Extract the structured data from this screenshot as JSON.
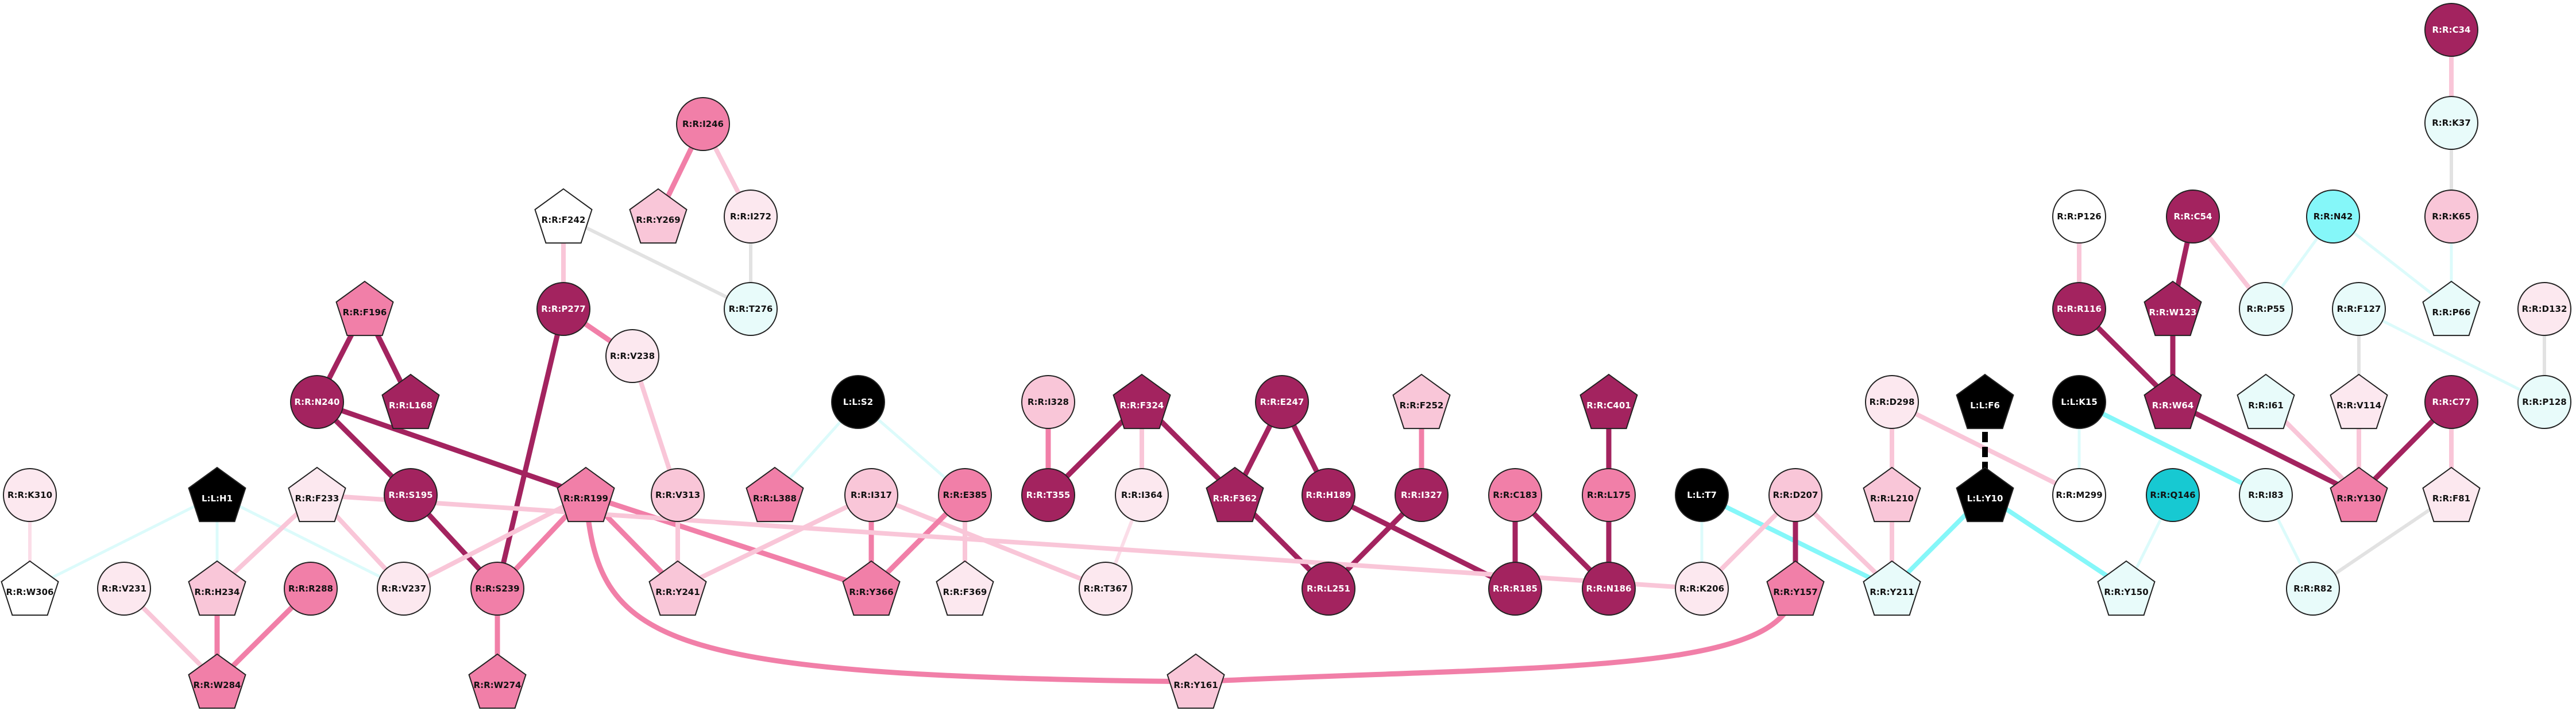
{
  "palette": {
    "white": "#ffffff",
    "blush": "#fce8ef",
    "pink": "#f9c6d8",
    "rose": "#f17fa8",
    "magenta": "#a3235f",
    "mint": "#e8fbfa",
    "cyan": "#85f7f9",
    "teal": "#17c9d2",
    "black": "#000000"
  },
  "edge_colors": {
    "dark": "#a3235f",
    "rose": "#f17fa8",
    "pink": "#f9c6d8",
    "grey": "#e2e2e2",
    "cyan": "#85f7f9",
    "faint_cyan": "#dcfbfb",
    "black": "#000000"
  },
  "nodes": [
    {
      "id": "R:R:C34",
      "shape": "circle",
      "fill": "magenta"
    },
    {
      "id": "R:R:K37",
      "shape": "circle",
      "fill": "mint"
    },
    {
      "id": "R:R:I246",
      "shape": "circle",
      "fill": "rose"
    },
    {
      "id": "R:R:Y269",
      "shape": "pentagon",
      "fill": "pink"
    },
    {
      "id": "R:R:I272",
      "shape": "circle",
      "fill": "blush"
    },
    {
      "id": "R:R:F242",
      "shape": "pentagon",
      "fill": "white"
    },
    {
      "id": "R:R:T276",
      "shape": "circle",
      "fill": "mint"
    },
    {
      "id": "R:R:P126",
      "shape": "circle",
      "fill": "white"
    },
    {
      "id": "R:R:C54",
      "shape": "circle",
      "fill": "magenta"
    },
    {
      "id": "R:R:N42",
      "shape": "circle",
      "fill": "cyan"
    },
    {
      "id": "R:R:K65",
      "shape": "circle",
      "fill": "pink"
    },
    {
      "id": "R:R:R116",
      "shape": "circle",
      "fill": "magenta"
    },
    {
      "id": "R:R:W123",
      "shape": "pentagon",
      "fill": "magenta"
    },
    {
      "id": "R:R:P55",
      "shape": "circle",
      "fill": "mint"
    },
    {
      "id": "R:R:F127",
      "shape": "circle",
      "fill": "mint"
    },
    {
      "id": "R:R:P66",
      "shape": "pentagon",
      "fill": "mint"
    },
    {
      "id": "R:R:D132",
      "shape": "circle",
      "fill": "blush"
    },
    {
      "id": "R:R:F196",
      "shape": "pentagon",
      "fill": "rose"
    },
    {
      "id": "R:R:P277",
      "shape": "circle",
      "fill": "magenta"
    },
    {
      "id": "R:R:V238",
      "shape": "circle",
      "fill": "blush"
    },
    {
      "id": "R:R:N240",
      "shape": "circle",
      "fill": "magenta"
    },
    {
      "id": "R:R:L168",
      "shape": "pentagon",
      "fill": "magenta"
    },
    {
      "id": "L:L:S2",
      "shape": "circle",
      "fill": "black"
    },
    {
      "id": "R:R:I328",
      "shape": "circle",
      "fill": "pink"
    },
    {
      "id": "R:R:F324",
      "shape": "pentagon",
      "fill": "magenta"
    },
    {
      "id": "R:R:E247",
      "shape": "circle",
      "fill": "magenta"
    },
    {
      "id": "R:R:F252",
      "shape": "pentagon",
      "fill": "pink"
    },
    {
      "id": "R:R:C401",
      "shape": "pentagon",
      "fill": "magenta"
    },
    {
      "id": "R:R:D298",
      "shape": "circle",
      "fill": "blush"
    },
    {
      "id": "L:L:F6",
      "shape": "pentagon",
      "fill": "black"
    },
    {
      "id": "L:L:K15",
      "shape": "circle",
      "fill": "black"
    },
    {
      "id": "R:R:W64",
      "shape": "pentagon",
      "fill": "magenta"
    },
    {
      "id": "R:R:I61",
      "shape": "pentagon",
      "fill": "mint"
    },
    {
      "id": "R:R:V114",
      "shape": "pentagon",
      "fill": "blush"
    },
    {
      "id": "R:R:C77",
      "shape": "circle",
      "fill": "magenta"
    },
    {
      "id": "R:R:P128",
      "shape": "circle",
      "fill": "mint"
    },
    {
      "id": "R:R:K310",
      "shape": "circle",
      "fill": "blush"
    },
    {
      "id": "L:L:H1",
      "shape": "pentagon",
      "fill": "black"
    },
    {
      "id": "R:R:F233",
      "shape": "pentagon",
      "fill": "blush"
    },
    {
      "id": "R:R:S195",
      "shape": "circle",
      "fill": "magenta"
    },
    {
      "id": "R:R:R199",
      "shape": "pentagon",
      "fill": "rose"
    },
    {
      "id": "R:R:V313",
      "shape": "circle",
      "fill": "pink"
    },
    {
      "id": "R:R:L388",
      "shape": "pentagon",
      "fill": "rose"
    },
    {
      "id": "R:R:I317",
      "shape": "circle",
      "fill": "pink"
    },
    {
      "id": "R:R:E385",
      "shape": "circle",
      "fill": "rose"
    },
    {
      "id": "R:R:T355",
      "shape": "circle",
      "fill": "magenta"
    },
    {
      "id": "R:R:I364",
      "shape": "circle",
      "fill": "blush"
    },
    {
      "id": "R:R:F362",
      "shape": "pentagon",
      "fill": "magenta"
    },
    {
      "id": "R:R:H189",
      "shape": "circle",
      "fill": "magenta"
    },
    {
      "id": "R:R:I327",
      "shape": "circle",
      "fill": "magenta"
    },
    {
      "id": "R:R:C183",
      "shape": "circle",
      "fill": "rose"
    },
    {
      "id": "R:R:L175",
      "shape": "circle",
      "fill": "rose"
    },
    {
      "id": "L:L:T7",
      "shape": "circle",
      "fill": "black"
    },
    {
      "id": "R:R:D207",
      "shape": "circle",
      "fill": "pink"
    },
    {
      "id": "R:R:L210",
      "shape": "pentagon",
      "fill": "pink"
    },
    {
      "id": "L:L:Y10",
      "shape": "pentagon",
      "fill": "black"
    },
    {
      "id": "R:R:M299",
      "shape": "circle",
      "fill": "white"
    },
    {
      "id": "R:R:Q146",
      "shape": "circle",
      "fill": "teal"
    },
    {
      "id": "R:R:I83",
      "shape": "circle",
      "fill": "mint"
    },
    {
      "id": "R:R:Y130",
      "shape": "pentagon",
      "fill": "rose"
    },
    {
      "id": "R:R:F81",
      "shape": "pentagon",
      "fill": "blush"
    },
    {
      "id": "R:R:W306",
      "shape": "pentagon",
      "fill": "white"
    },
    {
      "id": "R:R:V231",
      "shape": "circle",
      "fill": "blush"
    },
    {
      "id": "R:R:H234",
      "shape": "pentagon",
      "fill": "pink"
    },
    {
      "id": "R:R:R288",
      "shape": "circle",
      "fill": "rose"
    },
    {
      "id": "R:R:V237",
      "shape": "circle",
      "fill": "blush"
    },
    {
      "id": "R:R:S239",
      "shape": "circle",
      "fill": "rose"
    },
    {
      "id": "R:R:Y241",
      "shape": "pentagon",
      "fill": "pink"
    },
    {
      "id": "R:R:Y366",
      "shape": "pentagon",
      "fill": "rose"
    },
    {
      "id": "R:R:F369",
      "shape": "pentagon",
      "fill": "blush"
    },
    {
      "id": "R:R:T367",
      "shape": "circle",
      "fill": "blush"
    },
    {
      "id": "R:R:L251",
      "shape": "circle",
      "fill": "magenta"
    },
    {
      "id": "R:R:R185",
      "shape": "circle",
      "fill": "magenta"
    },
    {
      "id": "R:R:N186",
      "shape": "circle",
      "fill": "magenta"
    },
    {
      "id": "R:R:K206",
      "shape": "circle",
      "fill": "blush"
    },
    {
      "id": "R:R:Y157",
      "shape": "pentagon",
      "fill": "rose"
    },
    {
      "id": "R:R:Y211",
      "shape": "pentagon",
      "fill": "mint"
    },
    {
      "id": "R:R:Y150",
      "shape": "pentagon",
      "fill": "mint"
    },
    {
      "id": "R:R:R82",
      "shape": "circle",
      "fill": "mint"
    },
    {
      "id": "R:R:W284",
      "shape": "pentagon",
      "fill": "rose"
    },
    {
      "id": "R:R:W274",
      "shape": "pentagon",
      "fill": "rose"
    },
    {
      "id": "R:R:Y161",
      "shape": "pentagon",
      "fill": "pink"
    }
  ],
  "edges": [
    {
      "source": "R:R:C34",
      "target": "R:R:K37",
      "color": "pink"
    },
    {
      "source": "R:R:K37",
      "target": "R:R:K65",
      "color": "grey"
    },
    {
      "source": "R:R:I246",
      "target": "R:R:Y269",
      "color": "rose"
    },
    {
      "source": "R:R:I246",
      "target": "R:R:I272",
      "color": "pink"
    },
    {
      "source": "R:R:I272",
      "target": "R:R:T276",
      "color": "grey"
    },
    {
      "source": "R:R:F242",
      "target": "R:R:T276",
      "color": "grey"
    },
    {
      "source": "R:R:F242",
      "target": "R:R:P277",
      "color": "pink"
    },
    {
      "source": "R:R:P126",
      "target": "R:R:R116",
      "color": "pink"
    },
    {
      "source": "R:R:R116",
      "target": "R:R:W64",
      "color": "dark"
    },
    {
      "source": "R:R:C54",
      "target": "R:R:W123",
      "color": "dark"
    },
    {
      "source": "R:R:C54",
      "target": "R:R:P55",
      "color": "pink"
    },
    {
      "source": "R:R:W123",
      "target": "R:R:W64",
      "color": "dark"
    },
    {
      "source": "R:R:N42",
      "target": "R:R:P55",
      "color": "faint_cyan"
    },
    {
      "source": "R:R:N42",
      "target": "R:R:P66",
      "color": "faint_cyan"
    },
    {
      "source": "R:R:K65",
      "target": "R:R:P66",
      "color": "faint_cyan"
    },
    {
      "source": "R:R:F127",
      "target": "R:R:V114",
      "color": "grey"
    },
    {
      "source": "R:R:F127",
      "target": "R:R:P128",
      "color": "faint_cyan"
    },
    {
      "source": "R:R:D132",
      "target": "R:R:P128",
      "color": "grey"
    },
    {
      "source": "R:R:W64",
      "target": "R:R:Y130",
      "color": "dark"
    },
    {
      "source": "R:R:V114",
      "target": "R:R:Y130",
      "color": "pink"
    },
    {
      "source": "R:R:I61",
      "target": "R:R:Y130",
      "color": "pink"
    },
    {
      "source": "R:R:C77",
      "target": "R:R:Y130",
      "color": "dark"
    },
    {
      "source": "R:R:C77",
      "target": "R:R:F81",
      "color": "pink"
    },
    {
      "source": "R:R:F81",
      "target": "R:R:R82",
      "color": "grey"
    },
    {
      "source": "L:L:K15",
      "target": "R:R:M299",
      "color": "faint_cyan"
    },
    {
      "source": "L:L:K15",
      "target": "R:R:I83",
      "color": "cyan"
    },
    {
      "source": "R:R:Q146",
      "target": "R:R:Y150",
      "color": "faint_cyan"
    },
    {
      "source": "R:R:I83",
      "target": "R:R:R82",
      "color": "faint_cyan"
    },
    {
      "source": "R:R:D298",
      "target": "R:R:L210",
      "color": "pink"
    },
    {
      "source": "R:R:D298",
      "target": "R:R:M299",
      "color": "pink"
    },
    {
      "source": "L:L:F6",
      "target": "L:L:Y10",
      "color": "black"
    },
    {
      "source": "L:L:Y10",
      "target": "R:R:Y211",
      "color": "cyan"
    },
    {
      "source": "L:L:Y10",
      "target": "R:R:Y150",
      "color": "cyan"
    },
    {
      "source": "L:L:T7",
      "target": "R:R:Y211",
      "color": "cyan"
    },
    {
      "source": "L:L:T7",
      "target": "R:R:K206",
      "color": "faint_cyan"
    },
    {
      "source": "R:R:D207",
      "target": "R:R:Y157",
      "color": "dark"
    },
    {
      "source": "R:R:D207",
      "target": "R:R:K206",
      "color": "pink"
    },
    {
      "source": "R:R:D207",
      "target": "R:R:Y211",
      "color": "pink"
    },
    {
      "source": "R:R:L210",
      "target": "R:R:Y211",
      "color": "pink"
    },
    {
      "source": "R:R:F196",
      "target": "R:R:N240",
      "color": "dark"
    },
    {
      "source": "R:R:F196",
      "target": "R:R:L168",
      "color": "dark"
    },
    {
      "source": "R:R:N240",
      "target": "R:R:S195",
      "color": "dark"
    },
    {
      "source": "R:R:N240",
      "target": "R:R:R199",
      "color": "dark"
    },
    {
      "source": "R:R:S195",
      "target": "R:R:S239",
      "color": "dark"
    },
    {
      "source": "R:R:P277",
      "target": "R:R:S239",
      "color": "dark"
    },
    {
      "source": "R:R:P277",
      "target": "R:R:V238",
      "color": "rose"
    },
    {
      "source": "R:R:V238",
      "target": "R:R:V313",
      "color": "pink"
    },
    {
      "source": "R:R:S239",
      "target": "R:R:W274",
      "color": "rose"
    },
    {
      "source": "R:R:R199",
      "target": "R:R:S239",
      "color": "rose"
    },
    {
      "source": "R:R:R199",
      "target": "R:R:Y241",
      "color": "rose"
    },
    {
      "source": "R:R:R199",
      "target": "R:R:Y366",
      "color": "rose"
    },
    {
      "source": "R:R:R199",
      "target": "R:R:V237",
      "color": "pink"
    },
    {
      "source": "R:R:V313",
      "target": "R:R:Y241",
      "color": "pink"
    },
    {
      "source": "R:R:I317",
      "target": "R:R:Y241",
      "color": "pink"
    },
    {
      "source": "R:R:I317",
      "target": "R:R:Y366",
      "color": "rose"
    },
    {
      "source": "R:R:I317",
      "target": "R:R:T367",
      "color": "pink"
    },
    {
      "source": "L:L:S2",
      "target": "R:R:L388",
      "color": "faint_cyan"
    },
    {
      "source": "L:L:S2",
      "target": "R:R:E385",
      "color": "faint_cyan"
    },
    {
      "source": "R:R:E385",
      "target": "R:R:Y366",
      "color": "rose"
    },
    {
      "source": "R:R:E385",
      "target": "R:R:F369",
      "color": "pink"
    },
    {
      "source": "R:R:I328",
      "target": "R:R:T355",
      "color": "rose"
    },
    {
      "source": "R:R:F324",
      "target": "R:R:T355",
      "color": "dark"
    },
    {
      "source": "R:R:F324",
      "target": "R:R:I364",
      "color": "pink"
    },
    {
      "source": "R:R:F324",
      "target": "R:R:F362",
      "color": "dark"
    },
    {
      "source": "R:R:I364",
      "target": "R:R:T367",
      "color": "blush_edge"
    },
    {
      "source": "R:R:E247",
      "target": "R:R:F362",
      "color": "dark"
    },
    {
      "source": "R:R:E247",
      "target": "R:R:H189",
      "color": "dark"
    },
    {
      "source": "R:R:F362",
      "target": "R:R:L251",
      "color": "dark"
    },
    {
      "source": "R:R:H189",
      "target": "R:R:R185",
      "color": "dark"
    },
    {
      "source": "R:R:F252",
      "target": "R:R:I327",
      "color": "rose"
    },
    {
      "source": "R:R:I327",
      "target": "R:R:L251",
      "color": "dark"
    },
    {
      "source": "R:R:C183",
      "target": "R:R:R185",
      "color": "dark"
    },
    {
      "source": "R:R:C183",
      "target": "R:R:N186",
      "color": "dark"
    },
    {
      "source": "R:R:C401",
      "target": "R:R:L175",
      "color": "dark"
    },
    {
      "source": "R:R:L175",
      "target": "R:R:N186",
      "color": "dark"
    },
    {
      "source": "R:R:K310",
      "target": "R:R:W306",
      "color": "blush_edge"
    },
    {
      "source": "L:L:H1",
      "target": "R:R:W306",
      "color": "faint_cyan"
    },
    {
      "source": "L:L:H1",
      "target": "R:R:H234",
      "color": "faint_cyan"
    },
    {
      "source": "L:L:H1",
      "target": "R:R:V237",
      "color": "faint_cyan"
    },
    {
      "source": "R:R:F233",
      "target": "R:R:H234",
      "color": "pink"
    },
    {
      "source": "R:R:F233",
      "target": "R:R:V237",
      "color": "pink"
    },
    {
      "source": "R:R:F233",
      "target": "R:R:K206",
      "color": "pink"
    },
    {
      "source": "R:R:V231",
      "target": "R:R:W284",
      "color": "pink"
    },
    {
      "source": "R:R:H234",
      "target": "R:R:W284",
      "color": "rose"
    },
    {
      "source": "R:R:R288",
      "target": "R:R:W284",
      "color": "rose"
    }
  ],
  "curved_edges": [
    {
      "source": "R:R:R199",
      "target": "R:R:Y161",
      "color": "rose"
    },
    {
      "source": "R:R:Y157",
      "target": "R:R:Y161",
      "color": "rose"
    }
  ]
}
